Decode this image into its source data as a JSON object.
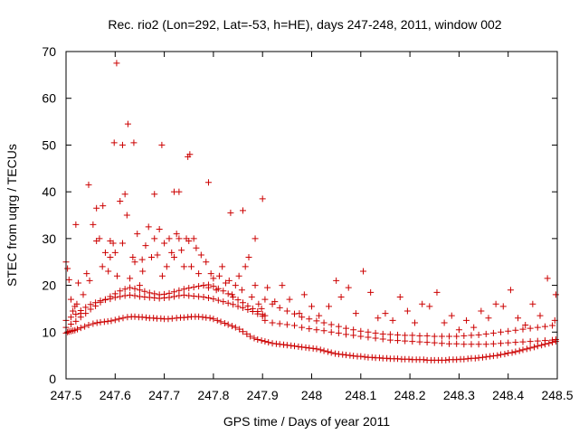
{
  "chart_data": {
    "type": "scatter",
    "title": "Rec. rio2 (Lon=292, Lat=-53, h=HE), days 247-248, 2011, window 002",
    "xlabel": "GPS time / Days of year 2011",
    "ylabel": "STEC from uqrg / TECUs",
    "xlim": [
      247.5,
      248.5
    ],
    "ylim": [
      0,
      70
    ],
    "x_ticks": [
      247.5,
      247.6,
      247.7,
      247.8,
      247.9,
      248,
      248.1,
      248.2,
      248.3,
      248.4,
      248.5
    ],
    "x_tick_labels": [
      "247.5",
      "247.6",
      "247.7",
      "247.8",
      "247.9",
      "248",
      "248.1",
      "248.2",
      "248.3",
      "248.4",
      "248.5"
    ],
    "y_ticks": [
      0,
      10,
      20,
      30,
      40,
      50,
      60,
      70
    ],
    "y_tick_labels": [
      "0",
      "10",
      "20",
      "30",
      "40",
      "50",
      "60",
      "70"
    ],
    "grid": false,
    "marker": "plus",
    "color": "#cc0000",
    "series": [
      {
        "x": [
          247.5,
          247.503,
          247.506,
          247.51,
          247.514,
          247.518,
          247.523,
          247.53,
          247.538,
          247.546,
          247.555,
          247.563,
          247.57,
          247.578,
          247.585,
          247.592,
          247.6,
          247.608,
          247.616,
          247.625,
          247.633,
          247.64,
          247.648,
          247.655,
          247.663,
          247.67,
          247.678,
          247.685,
          247.693,
          247.7,
          247.708,
          247.716,
          247.725,
          247.733,
          247.74,
          247.748,
          247.755,
          247.763,
          247.77,
          247.778,
          247.785,
          247.793,
          247.8,
          247.808,
          247.815,
          247.823,
          247.83,
          247.838,
          247.845,
          247.853,
          247.86,
          247.868,
          247.875,
          247.883,
          247.89,
          247.898,
          247.905,
          247.912,
          247.92,
          247.928,
          247.935,
          247.943,
          247.95,
          247.958,
          247.965,
          247.973,
          247.98,
          247.988,
          247.995,
          248.003,
          248.01,
          248.018,
          248.025,
          248.033,
          248.04,
          248.048,
          248.055,
          248.063,
          248.07,
          248.078,
          248.085,
          248.093,
          248.1,
          248.108,
          248.115,
          248.123,
          248.13,
          248.138,
          248.145,
          248.153,
          248.16,
          248.168,
          248.175,
          248.183,
          248.19,
          248.198,
          248.205,
          248.213,
          248.22,
          248.228,
          248.235,
          248.243,
          248.25,
          248.258,
          248.265,
          248.273,
          248.28,
          248.288,
          248.295,
          248.303,
          248.31,
          248.318,
          248.325,
          248.333,
          248.34,
          248.348,
          248.355,
          248.363,
          248.37,
          248.378,
          248.385,
          248.393,
          248.4,
          248.408,
          248.415,
          248.423,
          248.43,
          248.438,
          248.445,
          248.453,
          248.46,
          248.468,
          248.475,
          248.483,
          248.49,
          248.497
        ],
        "y": [
          9.8,
          10.0,
          10.1,
          10.2,
          10.3,
          10.4,
          10.6,
          10.9,
          11.2,
          11.5,
          11.8,
          12.0,
          12.1,
          12.2,
          12.3,
          12.4,
          12.6,
          12.8,
          13.0,
          13.2,
          13.3,
          13.3,
          13.2,
          13.2,
          13.1,
          13.0,
          13.0,
          12.9,
          12.9,
          12.8,
          12.8,
          12.9,
          13.0,
          13.1,
          13.1,
          13.2,
          13.3,
          13.3,
          13.3,
          13.2,
          13.1,
          13.0,
          12.8,
          12.5,
          12.2,
          11.9,
          11.6,
          11.3,
          11.0,
          10.6,
          10.1,
          9.6,
          9.1,
          8.7,
          8.4,
          8.2,
          8.0,
          7.8,
          7.6,
          7.5,
          7.4,
          7.3,
          7.2,
          7.1,
          7.0,
          6.9,
          6.8,
          6.7,
          6.6,
          6.5,
          6.4,
          6.2,
          6.0,
          5.8,
          5.6,
          5.4,
          5.3,
          5.2,
          5.1,
          5.0,
          4.9,
          4.8,
          4.8,
          4.7,
          4.6,
          4.6,
          4.5,
          4.5,
          4.4,
          4.4,
          4.3,
          4.3,
          4.3,
          4.2,
          4.2,
          4.2,
          4.1,
          4.1,
          4.1,
          4.1,
          4.0,
          4.0,
          4.0,
          4.0,
          4.0,
          4.0,
          4.1,
          4.1,
          4.1,
          4.2,
          4.2,
          4.3,
          4.4,
          4.4,
          4.5,
          4.6,
          4.7,
          4.8,
          4.9,
          5.0,
          5.2,
          5.3,
          5.5,
          5.6,
          5.8,
          6.0,
          6.2,
          6.4,
          6.6,
          6.8,
          7.0,
          7.2,
          7.4,
          7.6,
          7.8,
          8.0
        ]
      },
      {
        "x": [
          247.5,
          247.51,
          247.52,
          247.53,
          247.54,
          247.55,
          247.56,
          247.57,
          247.58,
          247.59,
          247.6,
          247.61,
          247.62,
          247.63,
          247.64,
          247.65,
          247.66,
          247.67,
          247.68,
          247.69,
          247.7,
          247.71,
          247.72,
          247.73,
          247.74,
          247.75,
          247.76,
          247.77,
          247.78,
          247.79,
          247.8,
          247.81,
          247.82,
          247.83,
          247.84,
          247.85,
          247.86,
          247.87,
          247.88,
          247.89,
          247.9
        ],
        "y": [
          12.5,
          13.2,
          13.8,
          14.6,
          15.3,
          15.9,
          16.3,
          16.7,
          16.9,
          17.1,
          17.4,
          17.6,
          17.8,
          17.9,
          17.8,
          17.6,
          17.5,
          17.4,
          17.3,
          17.2,
          17.3,
          17.4,
          17.6,
          17.8,
          17.9,
          17.8,
          17.7,
          17.6,
          17.5,
          17.3,
          17.1,
          16.8,
          16.5,
          16.2,
          15.9,
          15.5,
          15.2,
          14.8,
          14.4,
          13.9,
          13.4
        ]
      },
      {
        "x": [
          247.5,
          247.51,
          247.52,
          247.53,
          247.54,
          247.55,
          247.56,
          247.57,
          247.58,
          247.59,
          247.6,
          247.61,
          247.62,
          247.63,
          247.64,
          247.65,
          247.66,
          247.67,
          247.68,
          247.69,
          247.7,
          247.71,
          247.72,
          247.73,
          247.74,
          247.75,
          247.76,
          247.77,
          247.78,
          247.79,
          247.8,
          247.81,
          247.82,
          247.83,
          247.84,
          247.85,
          247.86,
          247.87,
          247.88,
          247.89,
          247.9
        ],
        "y": [
          11.0,
          11.7,
          12.3,
          13.2,
          14.0,
          14.9,
          15.6,
          16.4,
          17.0,
          17.6,
          18.2,
          18.8,
          19.2,
          19.5,
          19.3,
          19.0,
          18.7,
          18.4,
          18.2,
          18.0,
          18.1,
          18.3,
          18.6,
          18.9,
          19.2,
          19.4,
          19.6,
          19.8,
          20.0,
          20.1,
          19.8,
          19.3,
          18.8,
          18.2,
          17.5,
          16.9,
          16.3,
          15.6,
          15.0,
          14.4,
          13.8
        ]
      },
      {
        "x": [
          247.5,
          247.503,
          247.506,
          247.51,
          247.514,
          247.518,
          247.522,
          247.525,
          247.53,
          247.535,
          247.542,
          247.548,
          247.555,
          247.562,
          247.568,
          247.574,
          247.58,
          247.586,
          247.59,
          247.596,
          247.6,
          247.604,
          247.61,
          247.615,
          247.62,
          247.624,
          247.63,
          247.636,
          247.64,
          247.645,
          247.65,
          247.656,
          247.662,
          247.668,
          247.674,
          247.68,
          247.686,
          247.69,
          247.696,
          247.7,
          247.705,
          247.71,
          247.715,
          247.72,
          247.725,
          247.73,
          247.735,
          247.74,
          247.745,
          247.75,
          247.755,
          247.76,
          247.765,
          247.77,
          247.775,
          247.78,
          247.785,
          247.79,
          247.795,
          247.8,
          247.806,
          247.812,
          247.818,
          247.825,
          247.832,
          247.838,
          247.845,
          247.852,
          247.858,
          247.865,
          247.872,
          247.878,
          247.885,
          247.892,
          247.898,
          247.905
        ],
        "y": [
          25.0,
          23.6,
          21.2,
          17.0,
          14.5,
          15.5,
          16.0,
          20.5,
          14.0,
          18.0,
          22.5,
          21.0,
          33.0,
          29.5,
          30.0,
          24.0,
          27.0,
          23.0,
          26.0,
          29.0,
          27.0,
          22.0,
          38.0,
          29.0,
          39.5,
          35.0,
          21.5,
          26.0,
          25.0,
          31.0,
          20.0,
          23.0,
          28.5,
          32.5,
          26.0,
          30.0,
          26.5,
          32.0,
          22.0,
          29.0,
          24.0,
          30.0,
          27.0,
          26.0,
          31.0,
          30.0,
          27.5,
          24.0,
          30.0,
          29.5,
          24.0,
          30.0,
          28.0,
          22.5,
          26.5,
          20.0,
          25.0,
          19.5,
          22.5,
          21.5,
          19.0,
          22.0,
          24.0,
          20.5,
          21.0,
          18.0,
          20.0,
          22.0,
          19.0,
          24.0,
          26.0,
          17.5,
          20.0,
          16.0,
          15.0,
          13.5
        ]
      },
      {
        "x": [
          247.52,
          247.546,
          247.562,
          247.575,
          247.59,
          247.598,
          247.603,
          247.615,
          247.626,
          247.638,
          247.655,
          247.68,
          247.695,
          247.72,
          247.73,
          247.748,
          247.752,
          247.79,
          247.835,
          247.86,
          247.885,
          247.9
        ],
        "y": [
          33.0,
          41.5,
          36.5,
          37.0,
          29.5,
          50.5,
          67.5,
          50.0,
          54.5,
          50.5,
          25.5,
          39.5,
          50.0,
          40.0,
          40.0,
          47.5,
          48.0,
          42.0,
          35.5,
          36.0,
          30.0,
          38.5
        ]
      },
      {
        "x": [
          247.905,
          247.92,
          247.935,
          247.95,
          247.965,
          247.98,
          247.995,
          248.01,
          248.025,
          248.04,
          248.055,
          248.07,
          248.085,
          248.1,
          248.115,
          248.13,
          248.145,
          248.16,
          248.175,
          248.19,
          248.205,
          248.22,
          248.235,
          248.25,
          248.265,
          248.28,
          248.295,
          248.31,
          248.325,
          248.34,
          248.355,
          248.37,
          248.385,
          248.4,
          248.415,
          248.43,
          248.445,
          248.46,
          248.475,
          248.49,
          248.497
        ],
        "y": [
          12.5,
          12.0,
          11.8,
          11.6,
          11.4,
          11.0,
          10.7,
          10.5,
          10.3,
          10.0,
          9.8,
          9.5,
          9.3,
          9.1,
          8.9,
          8.7,
          8.5,
          8.3,
          8.2,
          8.1,
          8.0,
          7.9,
          7.8,
          7.7,
          7.6,
          7.5,
          7.5,
          7.4,
          7.4,
          7.4,
          7.4,
          7.5,
          7.6,
          7.7,
          7.8,
          7.9,
          8.0,
          8.1,
          8.2,
          8.3,
          8.4
        ]
      },
      {
        "x": [
          247.905,
          247.92,
          247.935,
          247.95,
          247.965,
          247.98,
          247.995,
          248.01,
          248.025,
          248.04,
          248.055,
          248.07,
          248.085,
          248.1,
          248.115,
          248.13,
          248.145,
          248.16,
          248.175,
          248.19,
          248.205,
          248.22,
          248.235,
          248.25,
          248.265,
          248.28,
          248.295,
          248.31,
          248.325,
          248.34,
          248.355,
          248.37,
          248.385,
          248.4,
          248.415,
          248.43,
          248.445,
          248.46,
          248.475,
          248.49
        ],
        "y": [
          17.0,
          16.0,
          15.2,
          14.5,
          13.9,
          13.2,
          12.8,
          12.4,
          12.0,
          11.6,
          11.2,
          10.8,
          10.5,
          10.2,
          10.0,
          9.8,
          9.6,
          9.5,
          9.4,
          9.3,
          9.3,
          9.2,
          9.2,
          9.1,
          9.1,
          9.1,
          9.1,
          9.2,
          9.3,
          9.4,
          9.6,
          9.8,
          10.0,
          10.2,
          10.4,
          10.6,
          10.8,
          11.0,
          11.2,
          11.4
        ]
      },
      {
        "x": [
          247.91,
          247.925,
          247.94,
          247.955,
          247.975,
          247.985,
          248.0,
          248.015,
          248.035,
          248.05,
          248.06,
          248.075,
          248.09,
          248.105,
          248.12,
          248.135,
          248.15,
          248.165,
          248.18,
          248.195,
          248.21,
          248.225,
          248.24,
          248.255,
          248.27,
          248.285,
          248.3,
          248.315,
          248.33,
          248.345,
          248.36,
          248.375,
          248.39,
          248.405,
          248.42,
          248.435,
          248.45,
          248.465,
          248.48,
          248.495,
          248.497
        ],
        "y": [
          19.5,
          16.5,
          20.0,
          17.0,
          14.0,
          18.0,
          15.5,
          13.5,
          15.5,
          21.0,
          17.5,
          19.5,
          14.0,
          23.0,
          18.5,
          13.0,
          14.0,
          12.5,
          17.5,
          14.5,
          12.0,
          16.0,
          15.5,
          18.5,
          12.0,
          13.5,
          10.5,
          12.5,
          11.0,
          14.5,
          13.0,
          16.0,
          15.5,
          19.0,
          13.0,
          11.5,
          16.0,
          13.5,
          21.5,
          12.5,
          18.0
        ]
      }
    ]
  }
}
